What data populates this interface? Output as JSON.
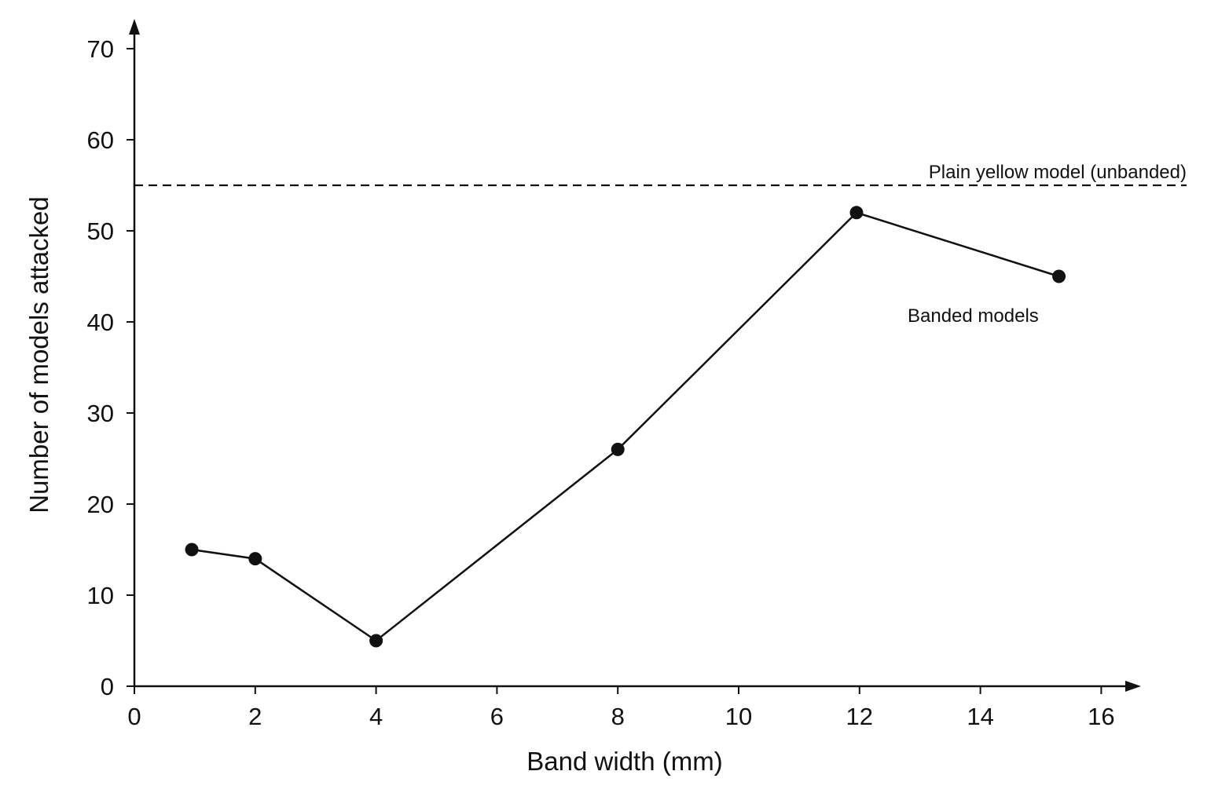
{
  "chart_data": {
    "type": "line",
    "xlabel": "Band width (mm)",
    "ylabel": "Number of models attacked",
    "xlim": [
      0,
      17
    ],
    "ylim": [
      0,
      70
    ],
    "xticks": [
      0,
      2,
      4,
      6,
      8,
      10,
      12,
      14,
      16
    ],
    "yticks": [
      0,
      10,
      20,
      30,
      40,
      50,
      60,
      70
    ],
    "grid": false,
    "series": [
      {
        "name": "Banded models",
        "x": [
          0.95,
          2.0,
          4.0,
          8.0,
          11.95,
          15.3
        ],
        "y": [
          15,
          14,
          5,
          26,
          52,
          45
        ]
      }
    ],
    "reference_lines": [
      {
        "label": "Plain yellow model (unbanded)",
        "y": 55,
        "style": "dashed"
      }
    ],
    "colors": {
      "line": "#111111",
      "background": "#ffffff"
    }
  }
}
